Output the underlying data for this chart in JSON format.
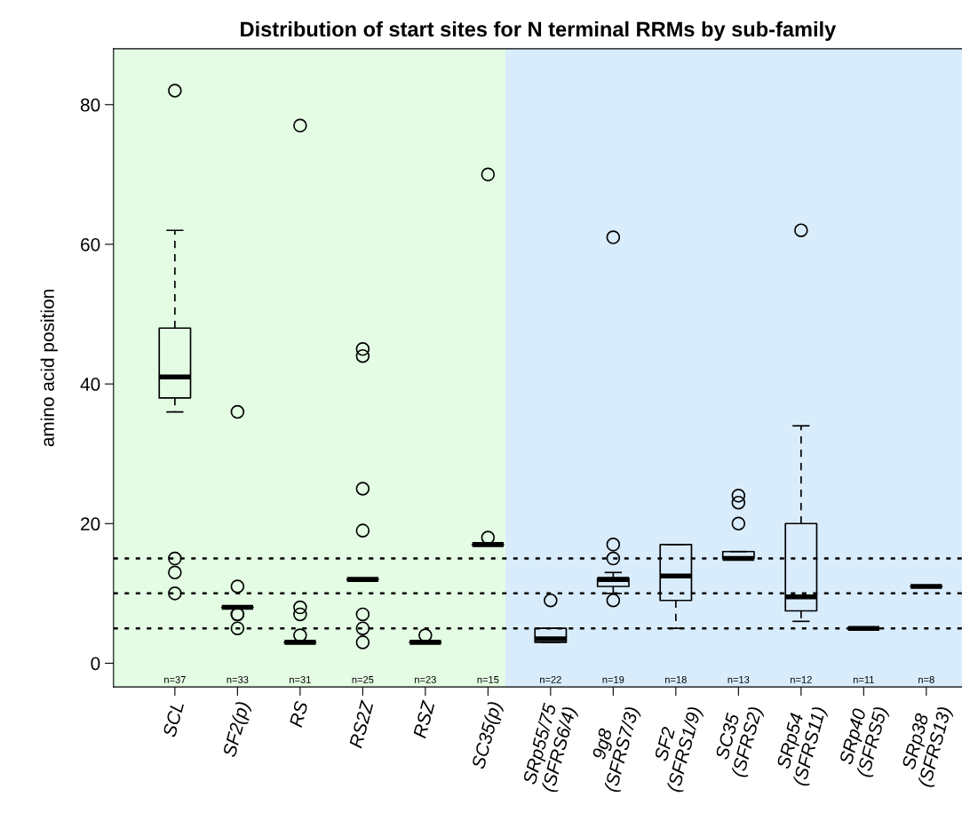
{
  "chart_data": {
    "type": "box",
    "title": "Distribution of start sites for N terminal RRMs by sub-family",
    "ylabel": "amino acid position",
    "categories": [
      "SCL",
      "SF2(p)",
      "RS",
      "RS2Z",
      "RSZ",
      "SC35(p)",
      "SRp55/75\n(SFRS6/4)",
      "9g8\n(SFRS7/3)",
      "SF2\n(SFRS1/9)",
      "SC35\n(SFRS2)",
      "SRp54\n(SFRS11)",
      "SRp40\n(SFRS5)",
      "SRp38\n(SFRS13)"
    ],
    "boxes": [
      {
        "low": 36,
        "q1": 38,
        "median": 41,
        "q3": 48,
        "high": 62,
        "outliers": [
          82,
          15,
          13,
          10
        ]
      },
      {
        "low": 8,
        "q1": 8,
        "median": 8,
        "q3": 8,
        "high": 8,
        "outliers": [
          36,
          11,
          7,
          7,
          5
        ]
      },
      {
        "low": 3,
        "q1": 3,
        "median": 3,
        "q3": 3,
        "high": 3,
        "outliers": [
          77,
          8,
          7,
          4
        ]
      },
      {
        "low": 12,
        "q1": 12,
        "median": 12,
        "q3": 12,
        "high": 12,
        "outliers": [
          45,
          44,
          25,
          19,
          7,
          5,
          3
        ]
      },
      {
        "low": 3,
        "q1": 3,
        "median": 3,
        "q3": 3,
        "high": 3,
        "outliers": [
          4
        ]
      },
      {
        "low": 17,
        "q1": 17,
        "median": 17,
        "q3": 17,
        "high": 17,
        "outliers": [
          70,
          18
        ]
      },
      {
        "low": 3,
        "q1": 3,
        "median": 3.5,
        "q3": 5,
        "high": 5,
        "outliers": [
          9
        ]
      },
      {
        "low": 10,
        "q1": 11,
        "median": 12,
        "q3": 12.2,
        "high": 13,
        "outliers": [
          61,
          17,
          15,
          9
        ]
      },
      {
        "low": 5,
        "q1": 9,
        "median": 12.5,
        "q3": 17,
        "high": 17
      },
      {
        "low": 15,
        "q1": 15,
        "median": 15,
        "q3": 16,
        "high": 16,
        "outliers": [
          24,
          23,
          20
        ]
      },
      {
        "low": 6,
        "q1": 7.5,
        "median": 9.5,
        "q3": 20,
        "high": 34,
        "outliers": [
          62
        ]
      },
      {
        "low": 5,
        "q1": 5,
        "median": 5,
        "q3": 5,
        "high": 5
      },
      {
        "low": 11,
        "q1": 11,
        "median": 11,
        "q3": 11,
        "high": 11
      }
    ],
    "ylim": [
      -3.4,
      88
    ],
    "yticks": [
      0,
      20,
      40,
      60,
      80
    ],
    "grid": false,
    "legend": false,
    "marker": "circle",
    "ref_lines": [
      {
        "axis": "y",
        "value": 5,
        "line_style": "dotted",
        "color": "#000000"
      },
      {
        "axis": "y",
        "value": 10,
        "line_style": "dotted",
        "color": "#000000"
      },
      {
        "axis": "y",
        "value": 15,
        "line_style": "dotted",
        "color": "#000000"
      }
    ],
    "annotations": [
      "n=37",
      "n=33",
      "n=31",
      "n=25",
      "n=23",
      "n=15",
      "n=22",
      "n=19",
      "n=18",
      "n=13",
      "n=12",
      "n=11",
      "n=8"
    ]
  }
}
